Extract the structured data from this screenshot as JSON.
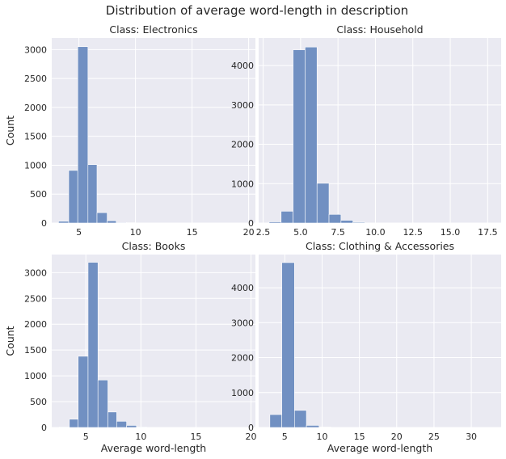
{
  "figure": {
    "title": "Distribution of average word-length in description"
  },
  "chart_data": [
    {
      "type": "bar",
      "title": "Class: Electronics",
      "xlabel": "",
      "ylabel": "Count",
      "xlim": [
        2.6,
        20.6
      ],
      "ylim": [
        0,
        3200
      ],
      "xticks": [
        5,
        10,
        15,
        20
      ],
      "yticks": [
        0,
        500,
        1000,
        1500,
        2000,
        2500,
        3000
      ],
      "bin_edges": [
        3.2,
        4.1,
        4.9,
        5.8,
        6.6,
        7.5,
        8.3,
        9.2,
        10.0
      ],
      "values": [
        30,
        910,
        3050,
        1010,
        180,
        40,
        10,
        5
      ]
    },
    {
      "type": "bar",
      "title": "Class: Household",
      "xlabel": "",
      "ylabel": "",
      "xlim": [
        2.2,
        18.4
      ],
      "ylim": [
        0,
        4700
      ],
      "xticks": [
        2.5,
        5.0,
        7.5,
        10.0,
        12.5,
        15.0,
        17.5
      ],
      "xtick_labels": [
        "2.5",
        "5.0",
        "7.5",
        "10.0",
        "12.5",
        "15.0",
        "17.5"
      ],
      "yticks": [
        0,
        1000,
        2000,
        3000,
        4000
      ],
      "bin_edges": [
        2.9,
        3.7,
        4.5,
        5.3,
        6.1,
        6.9,
        7.7,
        8.5,
        9.3
      ],
      "values": [
        30,
        300,
        4400,
        4470,
        1010,
        220,
        70,
        20
      ]
    },
    {
      "type": "bar",
      "title": "Class: Books",
      "xlabel": "Average word-length",
      "ylabel": "Count",
      "xlim": [
        1.9,
        20.4
      ],
      "ylim": [
        0,
        3350
      ],
      "xticks": [
        5,
        10,
        15,
        20
      ],
      "yticks": [
        0,
        500,
        1000,
        1500,
        2000,
        2500,
        3000
      ],
      "bin_edges": [
        2.6,
        3.5,
        4.3,
        5.2,
        6.1,
        7.0,
        7.8,
        8.7,
        9.6,
        10.5,
        11.3
      ],
      "values": [
        10,
        160,
        1380,
        3200,
        920,
        300,
        120,
        40,
        10,
        3
      ]
    },
    {
      "type": "bar",
      "title": "Class: Clothing & Accessories",
      "xlabel": "Average word-length",
      "ylabel": "",
      "xlim": [
        1.5,
        34.0
      ],
      "ylim": [
        0,
        4950
      ],
      "xticks": [
        5,
        10,
        15,
        20,
        25,
        30
      ],
      "yticks": [
        0,
        1000,
        2000,
        3000,
        4000
      ],
      "bin_edges": [
        3.0,
        4.6,
        6.3,
        7.9,
        9.6,
        11.2
      ],
      "values": [
        370,
        4720,
        490,
        60,
        10
      ]
    }
  ]
}
